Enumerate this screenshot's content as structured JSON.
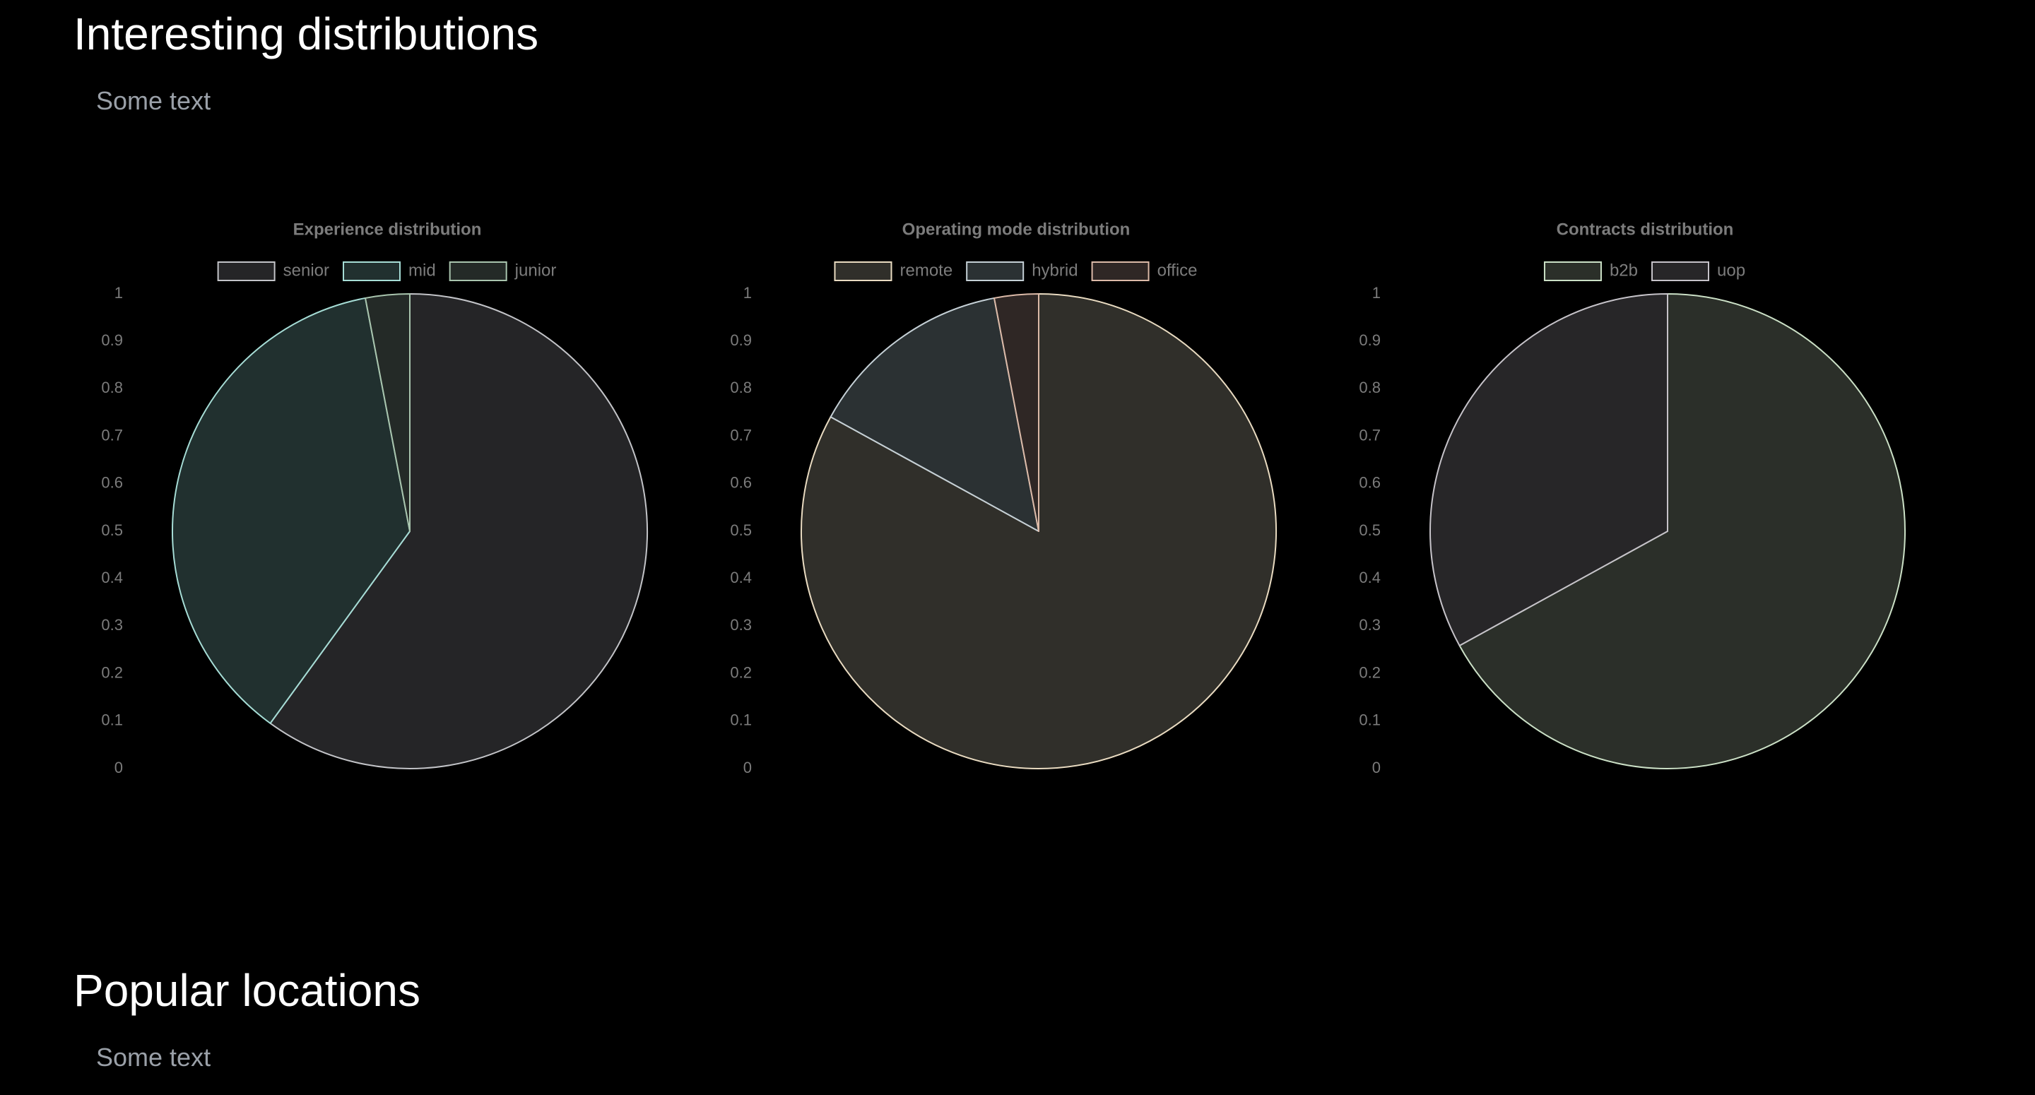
{
  "sections": [
    {
      "title": "Interesting distributions",
      "text": "Some text"
    },
    {
      "title": "Popular locations",
      "text": "Some text"
    }
  ],
  "colors": {
    "background": "#000000",
    "chart_text": "#7c7c7c",
    "heading": "#ffffff",
    "paragraph": "#9aa0a8"
  },
  "chart_data": [
    {
      "type": "pie",
      "title": "Experience distribution",
      "categories": [
        "senior",
        "mid",
        "junior"
      ],
      "values": [
        0.6,
        0.37,
        0.03
      ],
      "fill_colors": [
        "#252527",
        "#21302f",
        "#242a27"
      ],
      "stroke_colors": [
        "#c3c4c8",
        "#a6ddd6",
        "#a9c5ae"
      ],
      "legend_position": "top",
      "y_ticks": [
        "1",
        "0.9",
        "0.8",
        "0.7",
        "0.6",
        "0.5",
        "0.4",
        "0.3",
        "0.2",
        "0.1",
        "0"
      ],
      "ylim": [
        0,
        1
      ]
    },
    {
      "type": "pie",
      "title": "Operating mode distribution",
      "categories": [
        "remote",
        "hybrid",
        "office"
      ],
      "values": [
        0.83,
        0.14,
        0.03
      ],
      "fill_colors": [
        "#302f2a",
        "#2b3133",
        "#2f2725"
      ],
      "stroke_colors": [
        "#e9dbc1",
        "#c5d0d6",
        "#dcbaa8"
      ],
      "legend_position": "top",
      "y_ticks": [
        "1",
        "0.9",
        "0.8",
        "0.7",
        "0.6",
        "0.5",
        "0.4",
        "0.3",
        "0.2",
        "0.1",
        "0"
      ],
      "ylim": [
        0,
        1
      ]
    },
    {
      "type": "pie",
      "title": "Contracts distribution",
      "categories": [
        "b2b",
        "uop"
      ],
      "values": [
        0.67,
        0.33
      ],
      "fill_colors": [
        "#2b2f29",
        "#272628"
      ],
      "stroke_colors": [
        "#cbe0c6",
        "#c6c3c9"
      ],
      "legend_position": "top",
      "y_ticks": [
        "1",
        "0.9",
        "0.8",
        "0.7",
        "0.6",
        "0.5",
        "0.4",
        "0.3",
        "0.2",
        "0.1",
        "0"
      ],
      "ylim": [
        0,
        1
      ]
    }
  ]
}
